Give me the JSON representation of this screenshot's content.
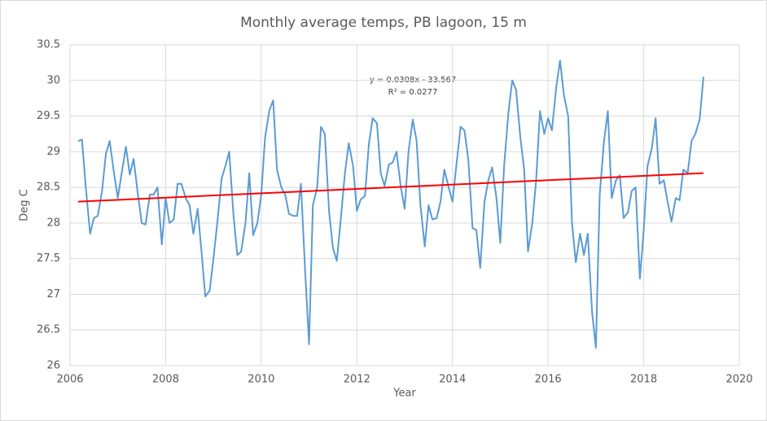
{
  "chart_data": {
    "type": "line",
    "title": "Monthly average temps, PB lagoon, 15 m",
    "x_label": "Year",
    "y_label": "Deg C",
    "x": [
      2006.17,
      2006.25,
      2006.33,
      2006.42,
      2006.5,
      2006.58,
      2006.67,
      2006.75,
      2006.83,
      2006.92,
      2007,
      2007.08,
      2007.17,
      2007.25,
      2007.33,
      2007.42,
      2007.5,
      2007.58,
      2007.67,
      2007.75,
      2007.83,
      2007.92,
      2008,
      2008.08,
      2008.17,
      2008.25,
      2008.33,
      2008.42,
      2008.5,
      2008.58,
      2008.67,
      2008.75,
      2008.83,
      2008.92,
      2009,
      2009.08,
      2009.17,
      2009.25,
      2009.33,
      2009.42,
      2009.5,
      2009.58,
      2009.67,
      2009.75,
      2009.83,
      2009.92,
      2010,
      2010.08,
      2010.17,
      2010.25,
      2010.33,
      2010.42,
      2010.5,
      2010.58,
      2010.67,
      2010.75,
      2010.83,
      2010.92,
      2011,
      2011.08,
      2011.17,
      2011.25,
      2011.33,
      2011.42,
      2011.5,
      2011.58,
      2011.67,
      2011.75,
      2011.83,
      2011.92,
      2012,
      2012.08,
      2012.17,
      2012.25,
      2012.33,
      2012.42,
      2012.5,
      2012.58,
      2012.67,
      2012.75,
      2012.83,
      2012.92,
      2013,
      2013.08,
      2013.17,
      2013.25,
      2013.33,
      2013.42,
      2013.5,
      2013.58,
      2013.67,
      2013.75,
      2013.83,
      2013.92,
      2014,
      2014.08,
      2014.17,
      2014.25,
      2014.33,
      2014.42,
      2014.5,
      2014.58,
      2014.67,
      2014.75,
      2014.83,
      2014.92,
      2015,
      2015.08,
      2015.17,
      2015.25,
      2015.33,
      2015.42,
      2015.5,
      2015.58,
      2015.67,
      2015.75,
      2015.83,
      2015.92,
      2016,
      2016.08,
      2016.17,
      2016.25,
      2016.33,
      2016.42,
      2016.5,
      2016.58,
      2016.67,
      2016.75,
      2016.83,
      2016.92,
      2017,
      2017.08,
      2017.17,
      2017.25,
      2017.33,
      2017.42,
      2017.5,
      2017.58,
      2017.67,
      2017.75,
      2017.83,
      2017.92,
      2018,
      2018.08,
      2018.17,
      2018.25,
      2018.33,
      2018.42,
      2018.5,
      2018.58,
      2018.67,
      2018.75,
      2018.83,
      2018.92,
      2019,
      2019.08,
      2019.17,
      2019.25
    ],
    "series": [
      {
        "color": "#5b9bd5",
        "values": [
          29.15,
          29.17,
          28.5,
          27.85,
          28.07,
          28.1,
          28.45,
          28.97,
          29.15,
          28.7,
          28.35,
          28.7,
          29.07,
          28.68,
          28.9,
          28.4,
          28.0,
          27.98,
          28.4,
          28.4,
          28.5,
          27.7,
          28.35,
          28.0,
          28.05,
          28.55,
          28.55,
          28.35,
          28.25,
          27.85,
          28.2,
          27.6,
          26.97,
          27.05,
          27.5,
          28.0,
          28.62,
          28.8,
          29.0,
          28.1,
          27.55,
          27.6,
          28.0,
          28.7,
          27.83,
          28.0,
          28.4,
          29.2,
          29.58,
          29.72,
          28.75,
          28.5,
          28.4,
          28.13,
          28.1,
          28.1,
          28.55,
          27.3,
          26.3,
          28.25,
          28.5,
          29.35,
          29.25,
          28.15,
          27.65,
          27.47,
          28.1,
          28.7,
          29.12,
          28.8,
          28.17,
          28.33,
          28.38,
          29.1,
          29.47,
          29.4,
          28.7,
          28.52,
          28.82,
          28.85,
          29.0,
          28.5,
          28.2,
          29.0,
          29.45,
          29.15,
          28.25,
          27.67,
          28.25,
          28.05,
          28.07,
          28.3,
          28.75,
          28.5,
          28.3,
          28.8,
          29.35,
          29.3,
          28.9,
          27.93,
          27.9,
          27.37,
          28.3,
          28.6,
          28.78,
          28.35,
          27.72,
          28.8,
          29.55,
          30.0,
          29.87,
          29.2,
          28.75,
          27.6,
          28.0,
          28.6,
          29.57,
          29.25,
          29.47,
          29.3,
          29.9,
          30.28,
          29.8,
          29.5,
          28.0,
          27.45,
          27.85,
          27.55,
          27.85,
          26.75,
          26.25,
          28.4,
          29.15,
          29.57,
          28.35,
          28.6,
          28.67,
          28.07,
          28.15,
          28.45,
          28.5,
          27.22,
          27.9,
          28.8,
          29.05,
          29.47,
          28.55,
          28.6,
          28.3,
          28.02,
          28.35,
          28.32,
          28.75,
          28.7,
          29.15,
          29.25,
          29.45,
          30.05
        ]
      }
    ],
    "trendline": {
      "x": [
        2006.17,
        2019.25
      ],
      "values": [
        28.3,
        28.7
      ],
      "color": "#ff0000",
      "equation": "y = 0.0308x - 33.567",
      "r_squared": "R² = 0.0277"
    },
    "xlim": [
      2006,
      2020
    ],
    "xticks": [
      2006,
      2008,
      2010,
      2012,
      2014,
      2016,
      2018,
      2020
    ],
    "ylim": [
      26,
      30.5
    ],
    "yticks": [
      26,
      26.5,
      27,
      27.5,
      28,
      28.5,
      29,
      29.5,
      30,
      30.5
    ],
    "grid": true
  }
}
